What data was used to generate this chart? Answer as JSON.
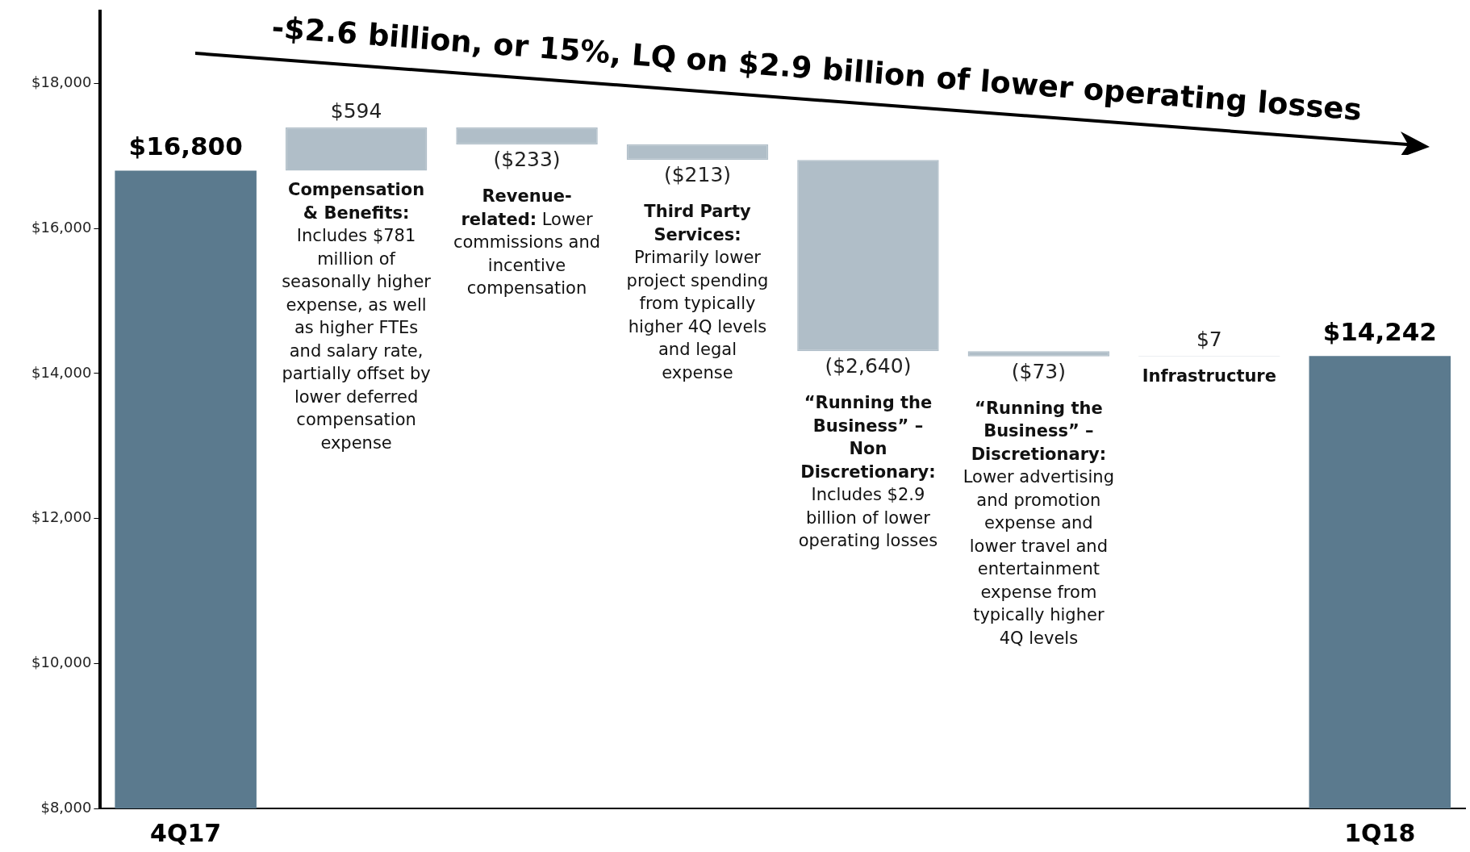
{
  "chart_data": {
    "type": "bar",
    "title": "-$2.6 billion, or 15%, LQ on $2.9 billion of lower operating losses",
    "categories": [
      "4Q17",
      null,
      null,
      null,
      null,
      null,
      null,
      "1Q18"
    ],
    "values": [
      16800,
      594,
      -233,
      -213,
      -2640,
      -73,
      7,
      14242
    ],
    "base": [
      null,
      16800,
      17394,
      17161,
      16948,
      14308,
      14235,
      null
    ],
    "colors": [
      "#5b7a8e",
      "#b0bec8",
      "#b0bec8",
      "#b0bec8",
      "#b0bec8",
      "#b0bec8",
      "#b0bec8",
      "#5b7a8e"
    ],
    "value_labels": [
      "$16,800",
      "$594",
      "($233)",
      "($213)",
      "($2,640)",
      "($73)",
      "$7",
      "$14,242"
    ],
    "annotations": [
      "Compensation & Benefits: Includes $781 million of seasonally higher expense, as well as higher FTEs and salary rate, partially offset by lower deferred compensation expense",
      "Revenue-related: Lower commissions and incentive compensation",
      "Third Party Services: Primarily lower project spending from typically higher 4Q levels and legal expense",
      "“Running the Business” – Non Discretionary: Includes $2.9 billion of lower operating losses",
      "“Running the Business” – Discretionary: Lower advertising and promotion expense and lower travel and entertainment expense from typically higher 4Q levels",
      "Infrastructure"
    ],
    "ylim": [
      8000,
      19000
    ],
    "yticks": [
      {
        "value": 8000,
        "label": "$8,000"
      },
      {
        "value": 10000,
        "label": "$10,000"
      },
      {
        "value": 12000,
        "label": "$12,000"
      },
      {
        "value": 14000,
        "label": "$14,000"
      },
      {
        "value": 16000,
        "label": "$16,000"
      },
      {
        "value": 18000,
        "label": "$18,000"
      }
    ],
    "grid": false,
    "legend": false
  }
}
